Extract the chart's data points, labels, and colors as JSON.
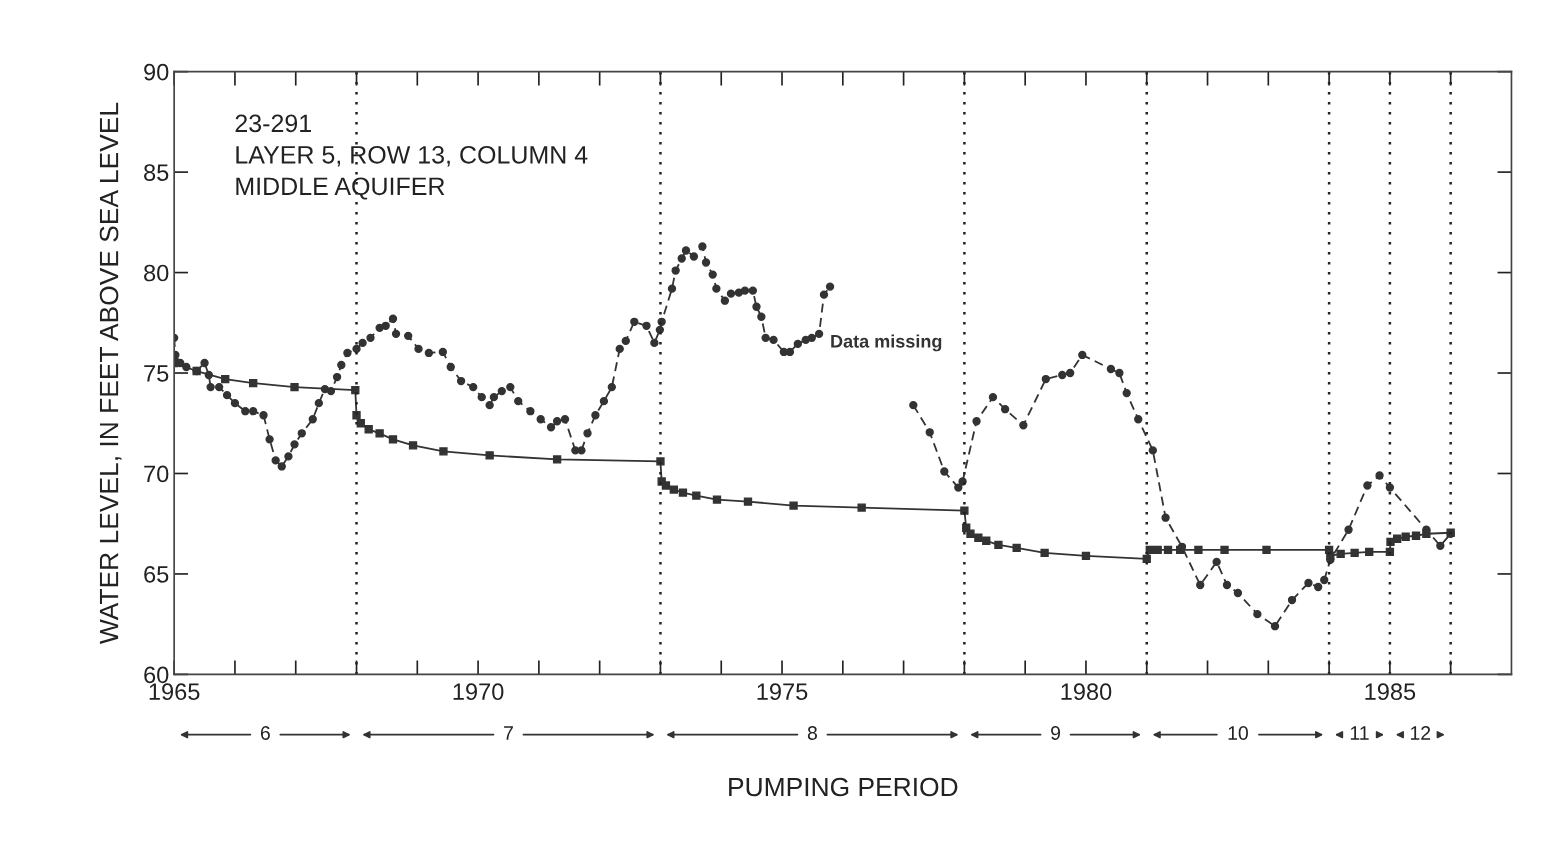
{
  "chart_data": {
    "type": "line",
    "xlabel": "PUMPING PERIOD",
    "ylabel": "WATER LEVEL, IN FEET ABOVE SEA LEVEL",
    "xlim": [
      1965,
      1987
    ],
    "xticks": [
      1965,
      {
        "value": 1966,
        "label": null
      },
      {
        "value": 1967,
        "label": null
      },
      {
        "value": 1968,
        "label": null
      },
      {
        "value": 1969,
        "label": null
      },
      1970,
      {
        "value": 1971,
        "label": null
      },
      {
        "value": 1972,
        "label": null
      },
      {
        "value": 1973,
        "label": null
      },
      {
        "value": 1974,
        "label": null
      },
      1975,
      {
        "value": 1976,
        "label": null
      },
      {
        "value": 1977,
        "label": null
      },
      {
        "value": 1978,
        "label": null
      },
      {
        "value": 1979,
        "label": null
      },
      1980,
      {
        "value": 1981,
        "label": null
      },
      {
        "value": 1982,
        "label": null
      },
      {
        "value": 1983,
        "label": null
      },
      {
        "value": 1984,
        "label": null
      },
      1985,
      {
        "value": 1986,
        "label": null
      }
    ],
    "ylim": [
      60,
      90
    ],
    "yticks": [
      60,
      65,
      70,
      75,
      80,
      85,
      90
    ],
    "grid": false,
    "series": [
      {
        "color": "#333333",
        "line_style": "dashed",
        "marker": "circle",
        "x": [
          1965.0,
          1965.02,
          1965.1,
          1965.2,
          1965.37,
          1965.5,
          1965.57,
          1965.6,
          1965.74,
          1965.87,
          1966.0,
          1966.17,
          1966.3,
          1966.47,
          1966.57,
          1966.67,
          1966.77,
          1966.88,
          1966.98,
          1967.1,
          1967.28,
          1967.38,
          1967.48,
          1967.58,
          1967.68,
          1967.75,
          1967.85,
          1968.0,
          1968.1,
          1968.23,
          1968.38,
          1968.48,
          1968.6,
          1968.65,
          1968.85,
          1969.02,
          1969.19,
          1969.42,
          1969.55,
          1969.72,
          1969.92,
          1970.06,
          1970.19,
          1970.26,
          1970.39,
          1970.53,
          1970.66,
          1970.86,
          1971.03,
          1971.2,
          1971.3,
          1971.43,
          1971.6,
          1971.7,
          1971.8,
          1971.93,
          1972.07,
          1972.2,
          1972.33,
          1972.43,
          1972.57,
          1972.77,
          1972.9,
          1972.99,
          1973.02,
          1973.19,
          1973.25,
          1973.35,
          1973.42,
          1973.55,
          1973.69,
          1973.75,
          1973.86,
          1973.92,
          1974.06,
          1974.16,
          1974.29,
          1974.39,
          1974.52,
          1974.58,
          1974.66,
          1974.73,
          1974.86,
          1975.03,
          1975.13,
          1975.26,
          1975.39,
          1975.49,
          1975.61,
          1975.69,
          1975.79,
          1976.5,
          1977.16,
          1977.43,
          1977.67,
          1977.9,
          1977.97,
          1978.2,
          1978.47,
          1978.67,
          1978.97,
          1979.34,
          1979.61,
          1979.74,
          1979.94,
          1980.41,
          1980.55,
          1980.67,
          1980.86,
          1981.1,
          1981.31,
          1981.58,
          1981.88,
          1982.15,
          1982.32,
          1982.5,
          1982.82,
          1983.11,
          1983.39,
          1983.66,
          1983.82,
          1983.92,
          1984.02,
          1984.32,
          1984.63,
          1984.83,
          1985.0,
          1985.6,
          1985.83,
          1986.0
        ],
        "values": [
          76.75,
          75.9,
          75.5,
          75.3,
          75.1,
          75.5,
          74.9,
          74.3,
          74.3,
          73.9,
          73.5,
          73.1,
          73.1,
          72.9,
          71.7,
          70.65,
          70.35,
          70.85,
          71.45,
          72.0,
          72.7,
          73.5,
          74.2,
          74.1,
          74.8,
          75.4,
          76.0,
          76.2,
          76.5,
          76.75,
          77.25,
          77.35,
          77.7,
          76.95,
          76.85,
          76.2,
          76.0,
          76.05,
          75.3,
          74.6,
          74.3,
          73.8,
          73.4,
          73.8,
          74.1,
          74.3,
          73.6,
          73.1,
          72.7,
          72.3,
          72.6,
          72.7,
          71.15,
          71.15,
          72.0,
          72.9,
          73.6,
          74.3,
          76.2,
          76.6,
          77.55,
          77.35,
          76.5,
          77.15,
          77.55,
          79.2,
          80.1,
          80.7,
          81.1,
          80.8,
          81.3,
          80.5,
          79.9,
          79.2,
          78.6,
          78.95,
          79.0,
          79.1,
          79.1,
          78.3,
          77.8,
          76.75,
          76.65,
          76.05,
          76.05,
          76.45,
          76.65,
          76.75,
          76.95,
          78.9,
          79.3,
          null,
          73.4,
          72.05,
          70.1,
          69.3,
          69.6,
          72.6,
          73.8,
          73.2,
          72.4,
          74.7,
          74.9,
          75.0,
          75.9,
          75.2,
          75.0,
          74.0,
          72.7,
          71.15,
          67.8,
          66.35,
          64.45,
          65.6,
          64.45,
          64.05,
          63.0,
          62.4,
          63.7,
          64.55,
          64.35,
          64.7,
          65.7,
          67.2,
          69.4,
          69.9,
          69.3,
          67.2,
          66.4,
          67.0
        ]
      },
      {
        "color": "#333333",
        "line_style": "solid",
        "marker": "square",
        "x": [
          1965.0,
          1965.37,
          1965.84,
          1966.3,
          1966.98,
          1967.98,
          1968.0,
          1968.07,
          1968.2,
          1968.38,
          1968.6,
          1968.93,
          1969.43,
          1970.19,
          1971.3,
          1973.0,
          1973.02,
          1973.09,
          1973.22,
          1973.37,
          1973.59,
          1973.93,
          1974.44,
          1975.19,
          1976.31,
          1978.0,
          1978.03,
          1978.1,
          1978.23,
          1978.36,
          1978.56,
          1978.86,
          1979.32,
          1980.0,
          1981.0,
          1981.05,
          1981.18,
          1981.35,
          1981.55,
          1981.85,
          1982.28,
          1982.97,
          1984.0,
          1984.02,
          1984.19,
          1984.42,
          1984.66,
          1985.0,
          1985.01,
          1985.12,
          1985.26,
          1985.43,
          1985.6,
          1986.0
        ],
        "values": [
          75.5,
          75.1,
          74.7,
          74.5,
          74.3,
          74.15,
          72.9,
          72.5,
          72.2,
          72.0,
          71.7,
          71.4,
          71.1,
          70.9,
          70.7,
          70.6,
          69.6,
          69.4,
          69.2,
          69.05,
          68.9,
          68.7,
          68.6,
          68.4,
          68.3,
          68.15,
          67.3,
          67.0,
          66.8,
          66.65,
          66.45,
          66.3,
          66.05,
          65.9,
          65.75,
          66.2,
          66.2,
          66.2,
          66.2,
          66.2,
          66.2,
          66.2,
          66.2,
          65.9,
          66.0,
          66.05,
          66.1,
          66.1,
          66.6,
          66.75,
          66.85,
          66.9,
          67.0,
          67.05
        ]
      }
    ],
    "ref_lines": [
      {
        "axis": "x",
        "value": 1968,
        "line_style": "dotted",
        "color": "#222222"
      },
      {
        "axis": "x",
        "value": 1973,
        "line_style": "dotted",
        "color": "#222222"
      },
      {
        "axis": "x",
        "value": 1978,
        "line_style": "dotted",
        "color": "#222222"
      },
      {
        "axis": "x",
        "value": 1981,
        "line_style": "dotted",
        "color": "#222222"
      },
      {
        "axis": "x",
        "value": 1984,
        "line_style": "dotted",
        "color": "#222222"
      },
      {
        "axis": "x",
        "value": 1985,
        "line_style": "dotted",
        "color": "#222222"
      },
      {
        "axis": "x",
        "value": 1986,
        "line_style": "dotted",
        "color": "#222222"
      }
    ],
    "annotations": [
      "23-291\nLAYER 5, ROW 13, COLUMN 4\nMIDDLE AQUIFER",
      "Data missing",
      "6",
      "7",
      "8",
      "9",
      "10",
      "11",
      "12"
    ]
  }
}
